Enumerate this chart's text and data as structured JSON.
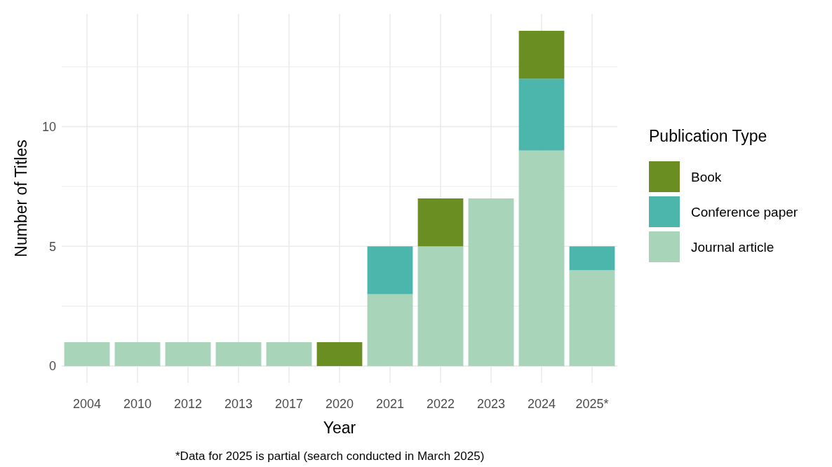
{
  "chart_data": {
    "type": "bar",
    "stacked": true,
    "xlabel": "Year",
    "ylabel": "Number of Titles",
    "legend_title": "Publication Type",
    "categories": [
      "2004",
      "2010",
      "2012",
      "2013",
      "2017",
      "2020",
      "2021",
      "2022",
      "2023",
      "2024",
      "2025*"
    ],
    "series": [
      {
        "name": "Journal article",
        "color": "#a8d5ba",
        "values": [
          1,
          1,
          1,
          1,
          1,
          0,
          3,
          5,
          7,
          9,
          4
        ]
      },
      {
        "name": "Conference paper",
        "color": "#4db6ac",
        "values": [
          0,
          0,
          0,
          0,
          0,
          0,
          2,
          0,
          0,
          3,
          1
        ]
      },
      {
        "name": "Book",
        "color": "#6b8e23",
        "values": [
          0,
          0,
          0,
          0,
          0,
          1,
          0,
          2,
          0,
          2,
          0
        ]
      }
    ],
    "ylim": [
      -0.7,
      14.7
    ],
    "yticks": [
      0,
      {
        "value": 2.5,
        "label": null
      },
      5,
      {
        "value": 7.5,
        "label": null
      },
      10,
      {
        "value": 12.5,
        "label": null
      }
    ],
    "grid": true,
    "legend": "right",
    "annotations": [
      "*Data for 2025 is partial (search conducted in March 2025)"
    ]
  }
}
